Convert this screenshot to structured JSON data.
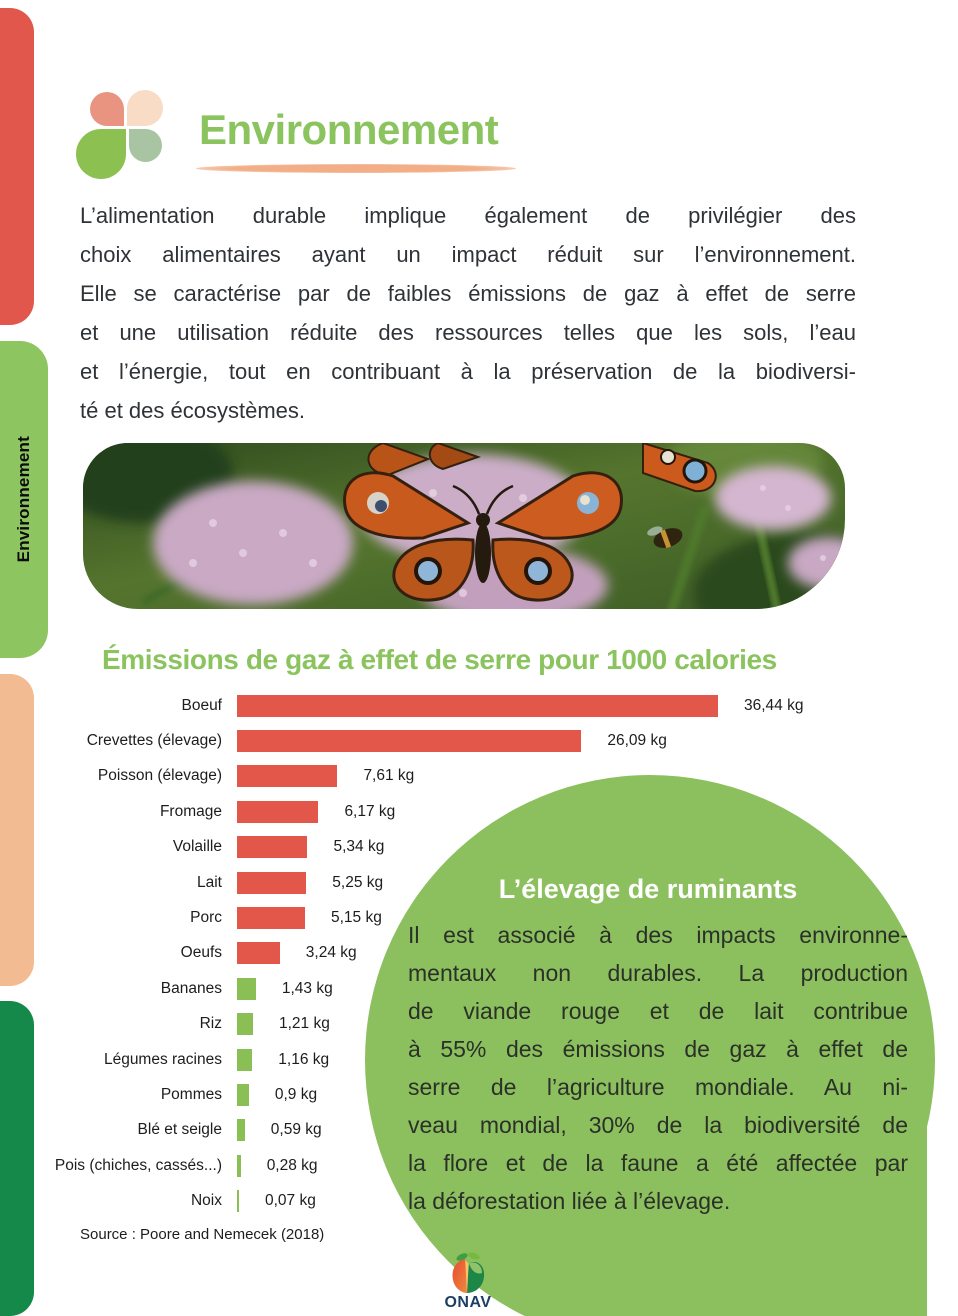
{
  "page": {
    "background": "#ffffff"
  },
  "sidebar": {
    "tabs": [
      {
        "id": "red",
        "color": "#E2574C",
        "label": ""
      },
      {
        "id": "environnement",
        "color": "#8DC560",
        "label": "Environnement",
        "active": true
      },
      {
        "id": "peach",
        "color": "#F3BB92",
        "label": ""
      },
      {
        "id": "dark-green",
        "color": "#15894A",
        "label": ""
      }
    ]
  },
  "header": {
    "title": "Environnement",
    "title_color": "#8BC45E",
    "underline_color": "#F2AE87",
    "logo_petal_colors": [
      "#E89480",
      "#F8DCC6",
      "#8CC152",
      "#A9C4A2"
    ]
  },
  "intro": {
    "lines": [
      "L’alimentation durable implique également de privilégier des",
      "choix alimentaires ayant un impact réduit sur l’environnement.",
      "Elle se caractérise par de faibles émissions de gaz à effet de serre",
      "et une utilisation réduite des ressources telles que les sols, l’eau",
      "et l’énergie, tout en contribuant à la préservation de la biodiversi-",
      "té et des écosystèmes."
    ]
  },
  "chart_data": {
    "type": "bar",
    "orientation": "horizontal",
    "title": "Émissions de gaz à effet de serre pour 1000 calories",
    "unit": "kg",
    "categories": [
      "Boeuf",
      "Crevettes (élevage)",
      "Poisson (élevage)",
      "Fromage",
      "Volaille",
      "Lait",
      "Porc",
      "Oeufs",
      "Bananes",
      "Riz",
      "Légumes racines",
      "Pommes",
      "Blé et seigle",
      "Pois (chiches, cassés...)",
      "Noix"
    ],
    "values": [
      36.44,
      26.09,
      7.61,
      6.17,
      5.34,
      5.25,
      5.15,
      3.24,
      1.43,
      1.21,
      1.16,
      0.9,
      0.59,
      0.28,
      0.07
    ],
    "value_labels": [
      "36,44 kg",
      "26,09 kg",
      "7,61 kg",
      "6,17 kg",
      "5,34 kg",
      "5,25 kg",
      "5,15 kg",
      "3,24 kg",
      "1,43 kg",
      "1,21 kg",
      "1,16 kg",
      "0,9 kg",
      "0,59 kg",
      "0,28 kg",
      "0,07 kg"
    ],
    "bar_colors": [
      "#E2574A",
      "#E2574A",
      "#E2574A",
      "#E2574A",
      "#E2574A",
      "#E2574A",
      "#E2574A",
      "#E2574A",
      "#8ABF55",
      "#8ABF55",
      "#8ABF55",
      "#8ABF55",
      "#8ABF55",
      "#8ABF55",
      "#8ABF55"
    ],
    "xlim": [
      0,
      40
    ],
    "grid": false,
    "legend": false,
    "source": "Source : Poore and Nemecek (2018)"
  },
  "callout": {
    "background": "#8CC05E",
    "title": "L’élevage de ruminants",
    "lines": [
      "Il est associé à des impacts environne-",
      "mentaux non durables. La production",
      "de viande rouge et de lait contribue",
      "à 55% des émissions de gaz à effet de",
      "serre de l’agriculture mondiale. Au ni-",
      "veau mondial, 30% de la biodiversité de",
      "la flore et de la faune a été affectée par",
      "la déforestation liée à l’élevage."
    ]
  },
  "footer": {
    "logo_text": "ONAV",
    "logo_text_color": "#1D3D63"
  }
}
